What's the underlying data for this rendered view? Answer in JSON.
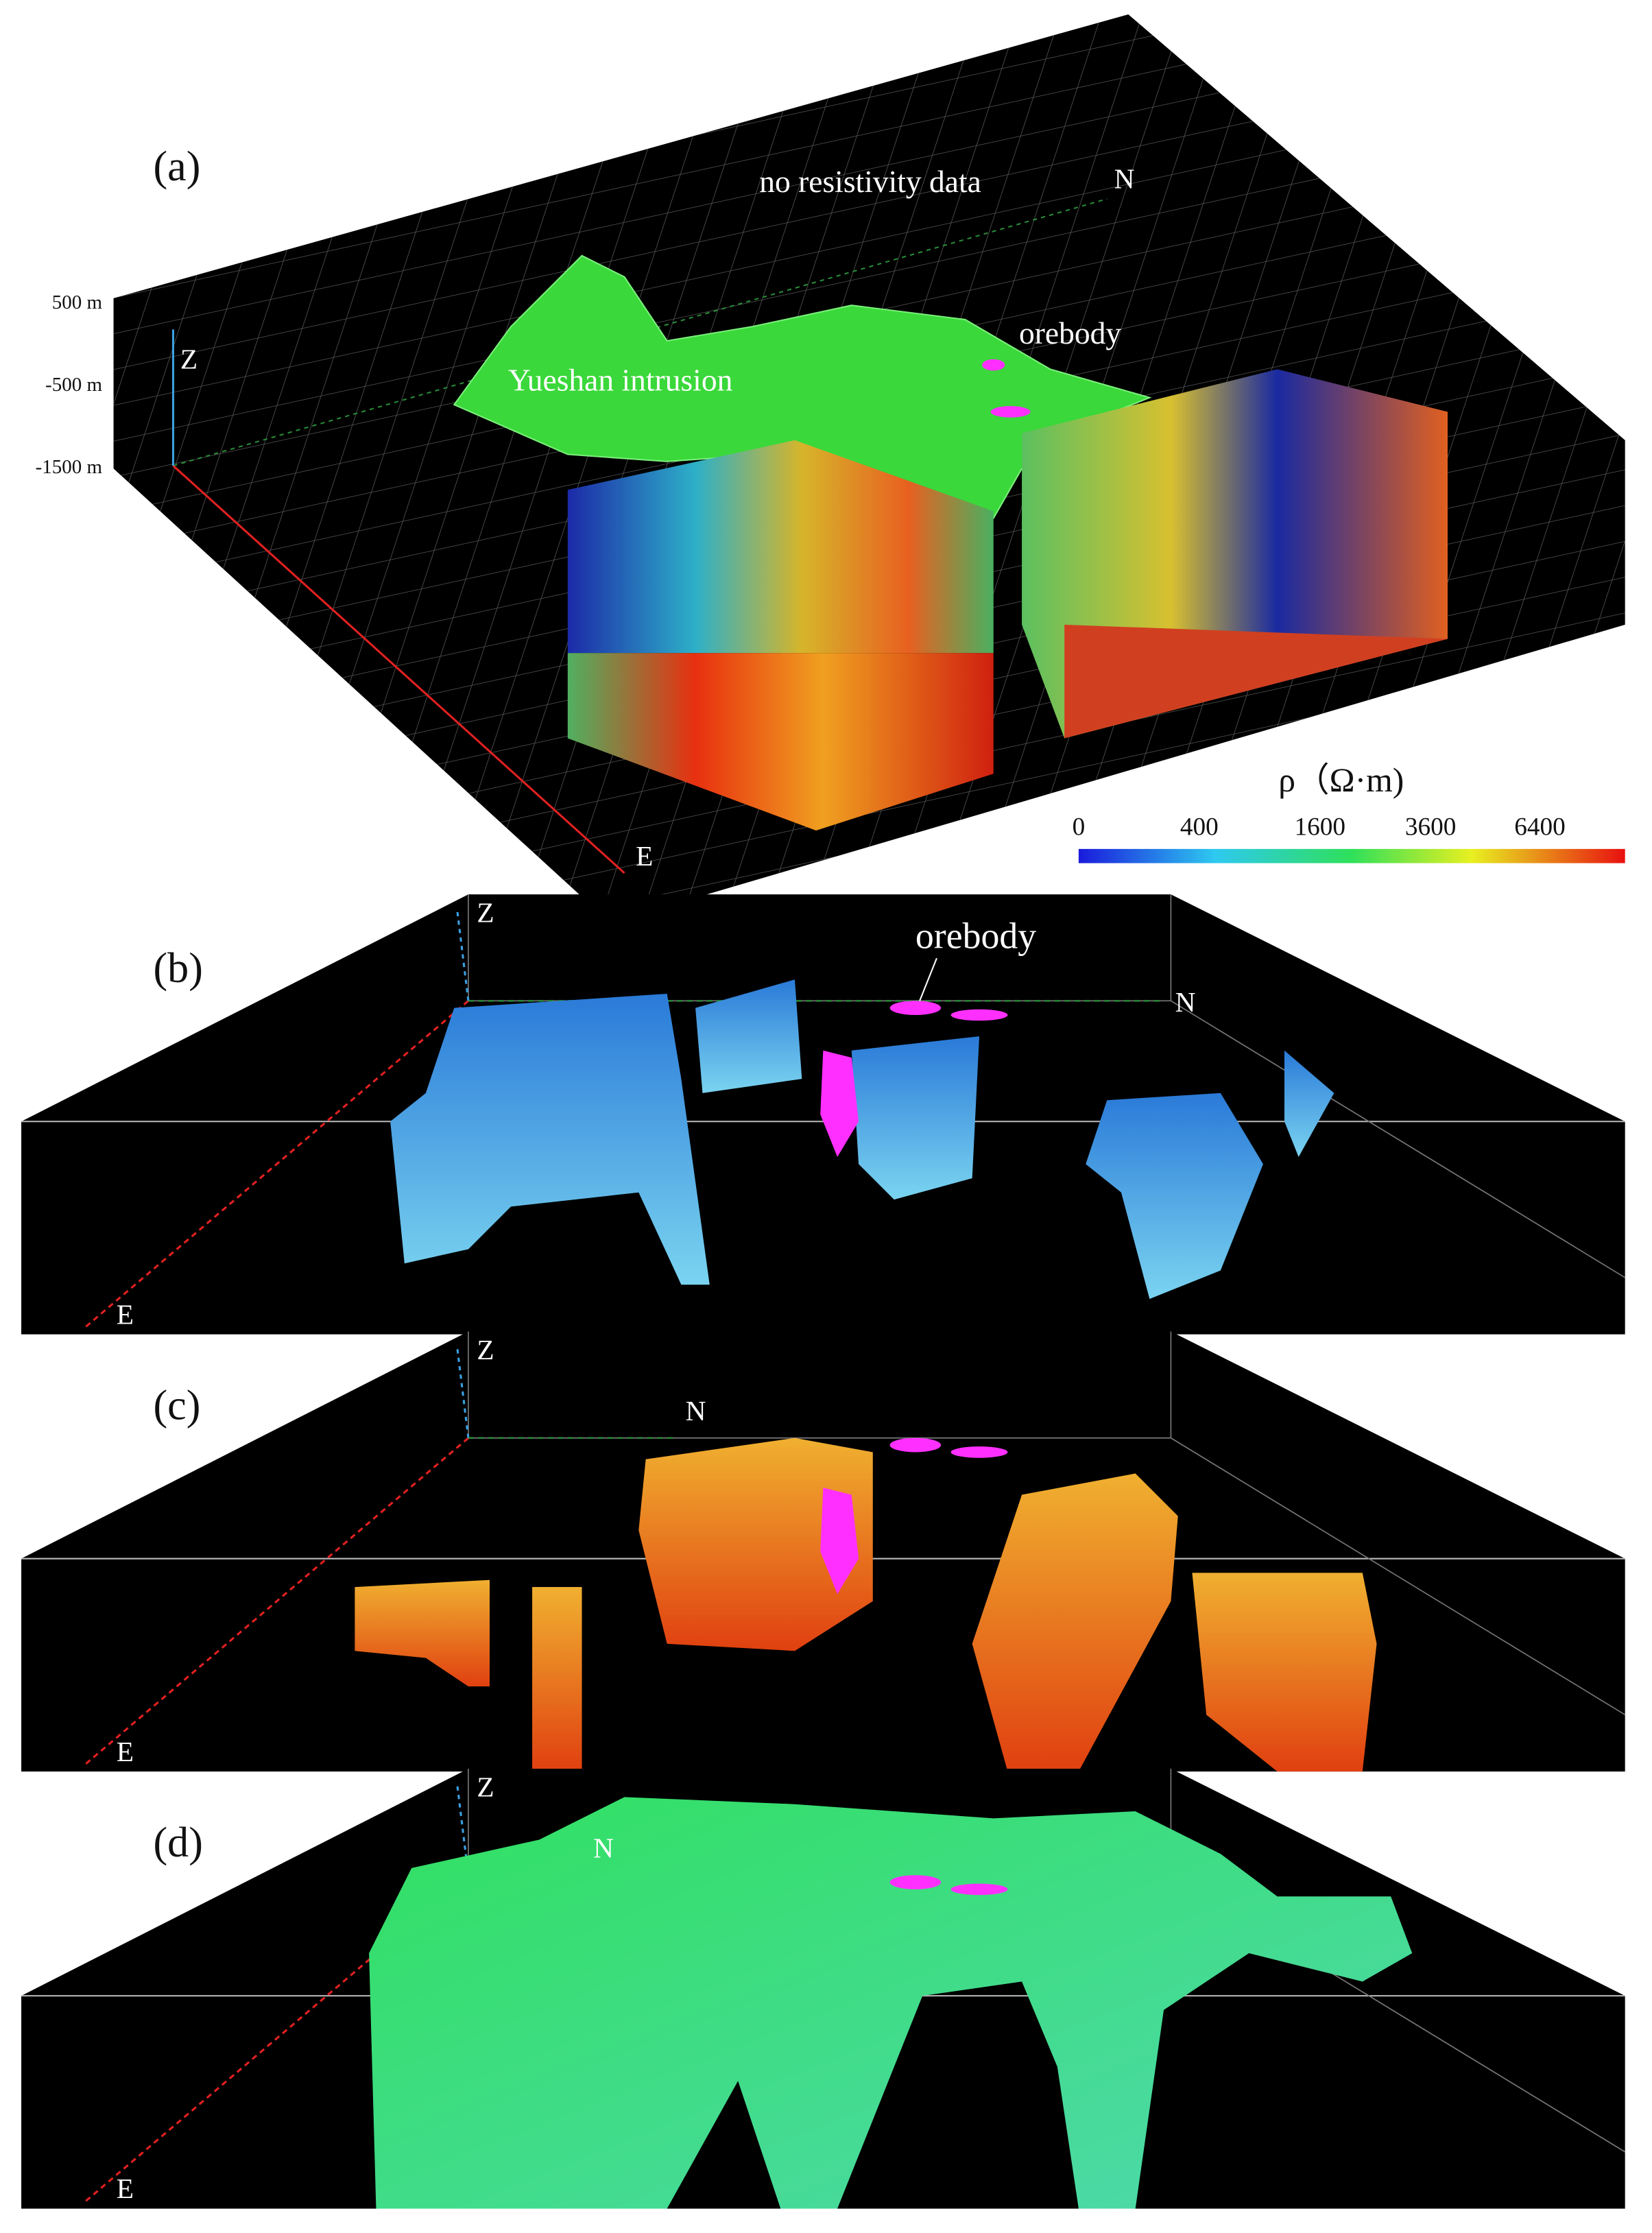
{
  "panels": [
    {
      "label": "(a)",
      "axes": {
        "z": "Z",
        "n": "N",
        "e": "E"
      },
      "depth_labels": [
        "500 m",
        "-500 m",
        "-1500 m"
      ],
      "annotations": [
        "no resistivity data",
        "Yueshan intrusion",
        "orebody"
      ],
      "colorbar": {
        "title": "ρ（Ω·m)",
        "ticks": [
          "0",
          "400",
          "1600",
          "3600",
          "6400"
        ]
      }
    },
    {
      "label": "(b)",
      "axes": {
        "z": "Z",
        "n": "N",
        "e": "E"
      },
      "annotations": [
        "orebody"
      ]
    },
    {
      "label": "(c)",
      "axes": {
        "z": "Z",
        "n": "N",
        "e": "E"
      }
    },
    {
      "label": "(d)",
      "axes": {
        "z": "Z",
        "n": "N",
        "e": "E"
      }
    }
  ]
}
